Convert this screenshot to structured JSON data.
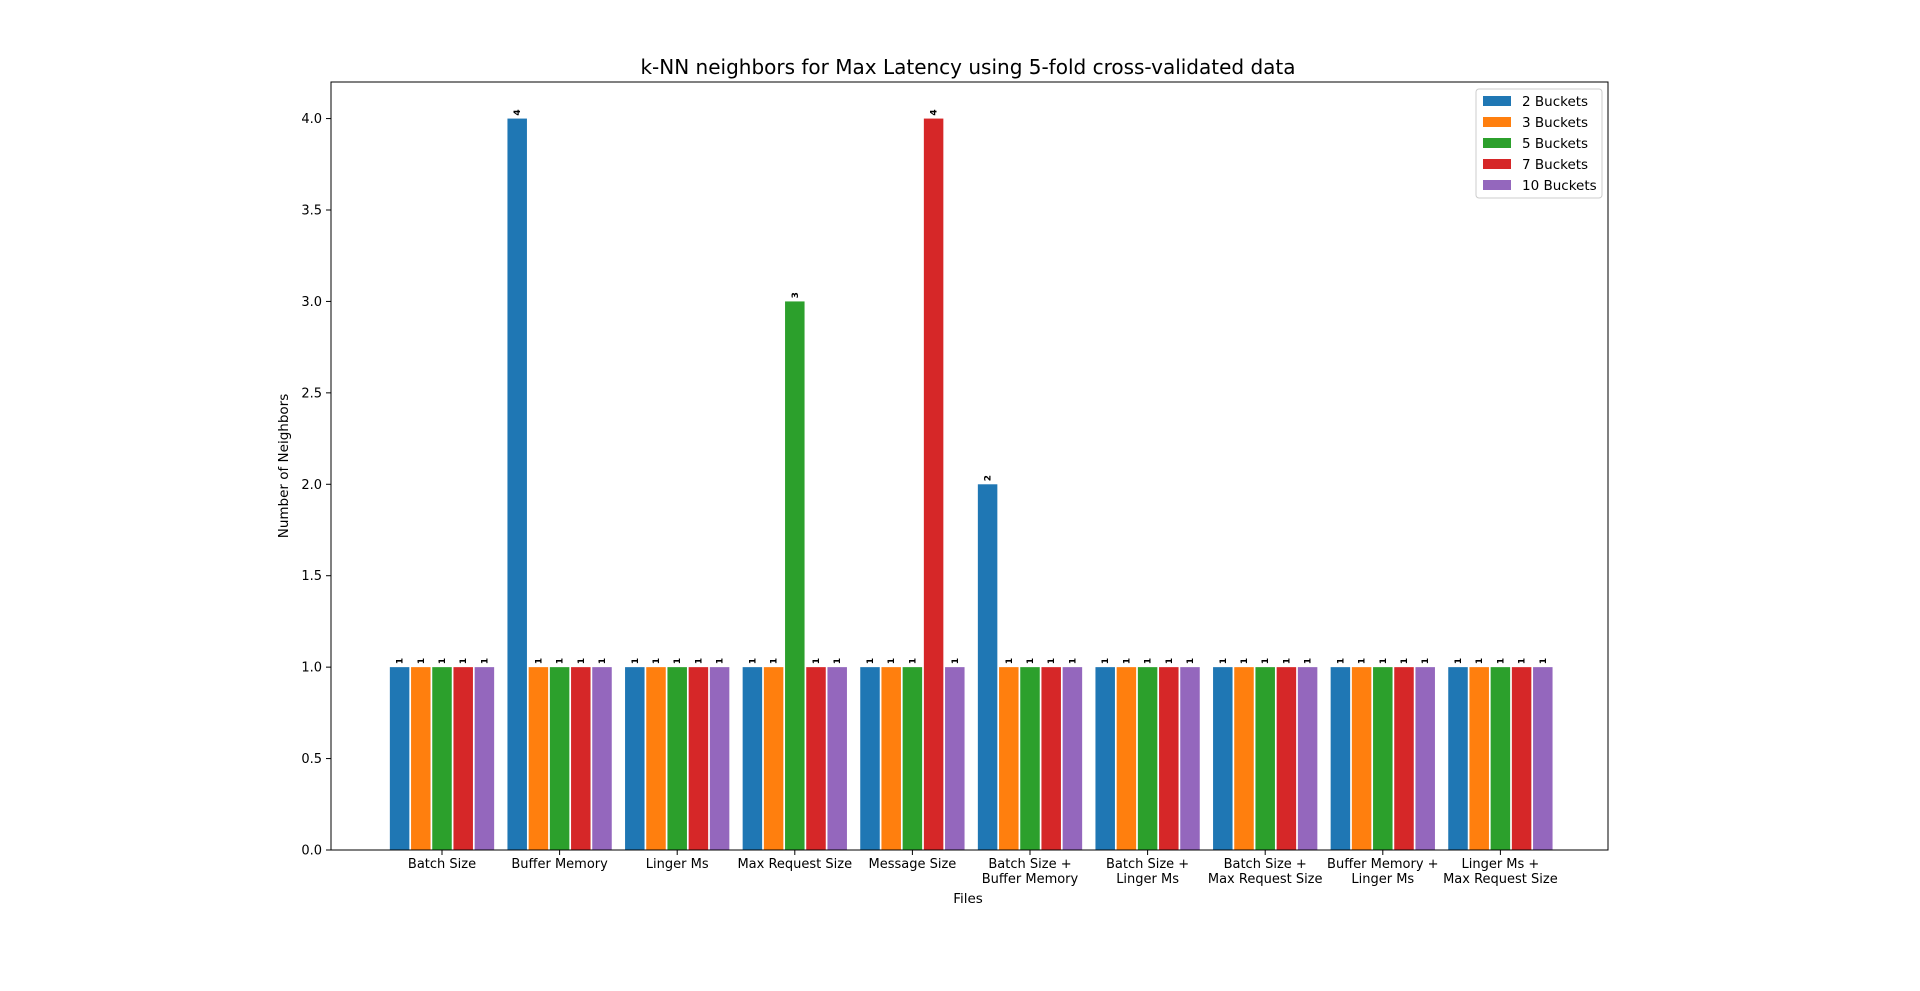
{
  "chart_data": {
    "type": "bar",
    "title": "k-NN neighbors for Max Latency using 5-fold cross-validated data",
    "xlabel": "Files",
    "ylabel": "Number of Neighbors",
    "ylim": [
      0,
      4.2
    ],
    "yticks": [
      "0.0",
      "0.5",
      "1.0",
      "1.5",
      "2.0",
      "2.5",
      "3.0",
      "3.5",
      "4.0"
    ],
    "grid": false,
    "legend_position": "top-right",
    "categories": [
      [
        "Batch Size"
      ],
      [
        "Buffer Memory"
      ],
      [
        "Linger Ms"
      ],
      [
        "Max Request Size"
      ],
      [
        "Message Size"
      ],
      [
        "Batch Size +",
        "Buffer Memory"
      ],
      [
        "Batch Size +",
        "Linger Ms"
      ],
      [
        "Batch Size +",
        "Max Request Size"
      ],
      [
        "Buffer Memory +",
        "Linger Ms"
      ],
      [
        "Linger Ms +",
        "Max Request Size"
      ]
    ],
    "series": [
      {
        "name": "2 Buckets",
        "color": "#1f77b4",
        "values": [
          1,
          4,
          1,
          1,
          1,
          2,
          1,
          1,
          1,
          1
        ]
      },
      {
        "name": "3 Buckets",
        "color": "#ff7f0e",
        "values": [
          1,
          1,
          1,
          1,
          1,
          1,
          1,
          1,
          1,
          1
        ]
      },
      {
        "name": "5 Buckets",
        "color": "#2ca02c",
        "values": [
          1,
          1,
          1,
          3,
          1,
          1,
          1,
          1,
          1,
          1
        ]
      },
      {
        "name": "7 Buckets",
        "color": "#d62728",
        "values": [
          1,
          1,
          1,
          1,
          4,
          1,
          1,
          1,
          1,
          1
        ]
      },
      {
        "name": "10 Buckets",
        "color": "#9467bd",
        "values": [
          1,
          1,
          1,
          1,
          1,
          1,
          1,
          1,
          1,
          1
        ]
      }
    ]
  }
}
